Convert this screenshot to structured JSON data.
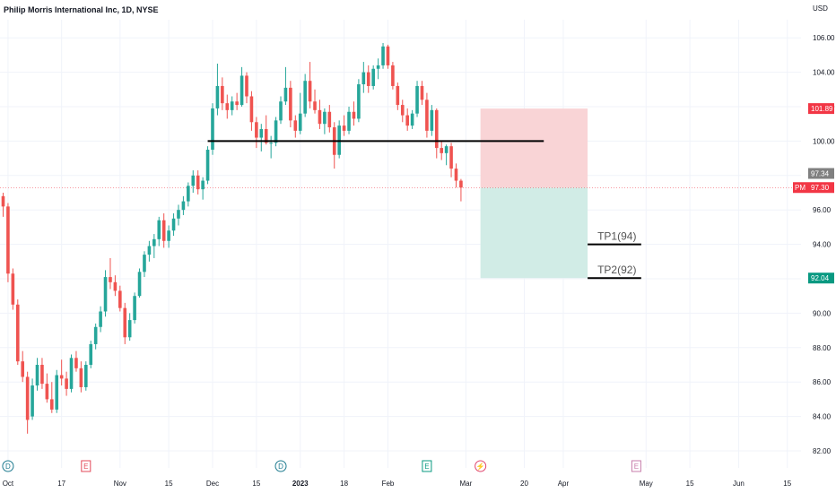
{
  "chart_data": {
    "type": "candlestick",
    "title": "Philip Morris International Inc, 1D, NYSE",
    "currency": "USD",
    "y_ticks": [
      82,
      84,
      86,
      88,
      90,
      92,
      94,
      96,
      98,
      100,
      102,
      104,
      106
    ],
    "y_tick_labels": [
      "82.00",
      "84.00",
      "86.00",
      "88.00",
      "90.00",
      "92.00",
      "94.00",
      "96.00",
      "98.00",
      "100.00",
      "102.00",
      "104.00",
      "106.00"
    ],
    "ylim": [
      81.0,
      107.5
    ],
    "x_ticks": [
      {
        "label": "Oct",
        "bar": 1
      },
      {
        "label": "17",
        "bar": 12
      },
      {
        "label": "Nov",
        "bar": 24
      },
      {
        "label": "15",
        "bar": 34
      },
      {
        "label": "Dec",
        "bar": 43
      },
      {
        "label": "15",
        "bar": 52
      },
      {
        "label": "2023",
        "bar": 61
      },
      {
        "label": "18",
        "bar": 70
      },
      {
        "label": "Feb",
        "bar": 79
      },
      {
        "label": "Mar",
        "bar": 95
      },
      {
        "label": "20",
        "bar": 107
      },
      {
        "label": "Apr",
        "bar": 115
      },
      {
        "label": "May",
        "bar": 132
      },
      {
        "label": "15",
        "bar": 141
      },
      {
        "label": "Jun",
        "bar": 151
      },
      {
        "label": "15",
        "bar": 161
      }
    ],
    "candles": [
      [
        96.8,
        97.0,
        95.6,
        96.2
      ],
      [
        96.2,
        96.4,
        91.8,
        92.3
      ],
      [
        92.3,
        92.6,
        90.2,
        90.5
      ],
      [
        90.5,
        90.8,
        87.0,
        87.2
      ],
      [
        87.2,
        87.8,
        86.0,
        86.3
      ],
      [
        86.3,
        86.6,
        83.0,
        83.8
      ],
      [
        84.0,
        86.2,
        83.8,
        85.8
      ],
      [
        85.8,
        87.4,
        85.5,
        87.0
      ],
      [
        87.0,
        87.4,
        85.6,
        85.9
      ],
      [
        85.9,
        86.5,
        84.8,
        85.0
      ],
      [
        85.0,
        86.0,
        84.2,
        84.4
      ],
      [
        84.4,
        86.7,
        84.2,
        86.4
      ],
      [
        86.4,
        87.3,
        85.8,
        86.2
      ],
      [
        86.2,
        86.6,
        85.2,
        85.6
      ],
      [
        85.6,
        87.6,
        85.4,
        87.4
      ],
      [
        87.4,
        87.8,
        86.6,
        86.8
      ],
      [
        86.8,
        87.2,
        85.4,
        85.7
      ],
      [
        85.7,
        87.2,
        85.5,
        87.0
      ],
      [
        87.0,
        88.4,
        86.8,
        88.2
      ],
      [
        88.2,
        89.4,
        87.9,
        89.2
      ],
      [
        89.2,
        90.4,
        88.9,
        90.1
      ],
      [
        90.1,
        92.5,
        89.8,
        92.1
      ],
      [
        92.1,
        93.2,
        91.4,
        91.8
      ],
      [
        91.8,
        92.2,
        91.0,
        91.3
      ],
      [
        91.3,
        91.6,
        90.1,
        90.3
      ],
      [
        90.3,
        90.6,
        88.2,
        88.6
      ],
      [
        88.6,
        90.0,
        88.4,
        89.6
      ],
      [
        89.6,
        91.2,
        89.4,
        91.0
      ],
      [
        91.0,
        92.6,
        90.9,
        92.4
      ],
      [
        92.4,
        93.6,
        92.1,
        93.4
      ],
      [
        93.4,
        94.2,
        93.0,
        93.9
      ],
      [
        93.9,
        94.6,
        93.2,
        94.3
      ],
      [
        94.3,
        95.6,
        93.9,
        95.4
      ],
      [
        95.4,
        95.8,
        93.8,
        94.2
      ],
      [
        94.2,
        95.1,
        93.8,
        94.8
      ],
      [
        94.8,
        95.8,
        94.5,
        95.5
      ],
      [
        95.5,
        96.3,
        95.1,
        96.0
      ],
      [
        96.0,
        96.8,
        95.7,
        96.5
      ],
      [
        96.5,
        97.6,
        96.2,
        97.4
      ],
      [
        97.4,
        98.3,
        97.0,
        98.0
      ],
      [
        98.0,
        98.3,
        96.9,
        97.2
      ],
      [
        97.2,
        97.9,
        96.6,
        97.7
      ],
      [
        97.7,
        99.7,
        97.5,
        99.5
      ],
      [
        99.5,
        102.2,
        99.2,
        101.9
      ],
      [
        101.9,
        104.5,
        101.5,
        103.2
      ],
      [
        103.2,
        103.7,
        101.8,
        102.2
      ],
      [
        102.2,
        102.7,
        101.3,
        101.8
      ],
      [
        101.8,
        102.6,
        101.5,
        102.3
      ],
      [
        102.3,
        102.8,
        101.8,
        102.1
      ],
      [
        102.1,
        104.3,
        102.0,
        103.8
      ],
      [
        103.8,
        104.0,
        102.2,
        102.6
      ],
      [
        102.6,
        102.9,
        100.6,
        101.1
      ],
      [
        101.1,
        101.4,
        99.6,
        100.2
      ],
      [
        100.2,
        101.0,
        99.4,
        100.7
      ],
      [
        100.7,
        101.5,
        99.8,
        99.9
      ],
      [
        99.9,
        100.3,
        99.0,
        99.9
      ],
      [
        99.9,
        101.4,
        99.7,
        101.2
      ],
      [
        101.2,
        102.6,
        101.0,
        102.3
      ],
      [
        102.3,
        104.3,
        102.1,
        103.1
      ],
      [
        103.1,
        103.5,
        100.8,
        101.2
      ],
      [
        101.2,
        101.5,
        100.2,
        100.6
      ],
      [
        100.6,
        102.8,
        100.4,
        101.6
      ],
      [
        101.6,
        103.9,
        101.4,
        103.5
      ],
      [
        103.5,
        104.6,
        101.9,
        102.3
      ],
      [
        102.3,
        103.0,
        101.6,
        101.8
      ],
      [
        101.8,
        102.4,
        100.7,
        101.0
      ],
      [
        101.0,
        101.9,
        100.4,
        101.7
      ],
      [
        101.7,
        102.1,
        100.5,
        100.8
      ],
      [
        100.8,
        101.1,
        98.4,
        99.2
      ],
      [
        99.2,
        101.2,
        99.0,
        100.9
      ],
      [
        100.9,
        101.5,
        100.3,
        100.6
      ],
      [
        100.6,
        102.0,
        100.4,
        101.7
      ],
      [
        101.7,
        102.3,
        100.9,
        101.3
      ],
      [
        101.3,
        103.6,
        101.1,
        103.3
      ],
      [
        103.3,
        104.6,
        102.8,
        104.0
      ],
      [
        104.0,
        104.4,
        102.8,
        103.2
      ],
      [
        103.2,
        104.4,
        103.0,
        104.2
      ],
      [
        104.2,
        104.8,
        103.6,
        104.4
      ],
      [
        104.4,
        105.7,
        104.2,
        105.5
      ],
      [
        105.5,
        105.6,
        104.2,
        104.4
      ],
      [
        104.4,
        104.6,
        103.0,
        103.2
      ],
      [
        103.2,
        103.4,
        101.8,
        102.1
      ],
      [
        102.1,
        102.4,
        101.1,
        101.5
      ],
      [
        101.5,
        101.9,
        100.6,
        100.9
      ],
      [
        100.9,
        101.8,
        100.7,
        101.6
      ],
      [
        101.6,
        103.5,
        101.4,
        103.2
      ],
      [
        103.2,
        103.5,
        102.1,
        102.4
      ],
      [
        102.4,
        102.8,
        100.2,
        100.6
      ],
      [
        100.6,
        102.1,
        100.3,
        101.8
      ],
      [
        101.8,
        101.9,
        99.0,
        99.6
      ],
      [
        99.6,
        100.0,
        98.9,
        99.3
      ],
      [
        99.3,
        99.8,
        98.6,
        99.7
      ],
      [
        99.7,
        99.9,
        97.9,
        98.4
      ],
      [
        98.4,
        98.7,
        97.3,
        97.7
      ],
      [
        97.7,
        97.8,
        96.5,
        97.3
      ]
    ],
    "colors": {
      "up": "#26a69a",
      "down": "#ef5350",
      "stop_zone": "#f9d4d6",
      "target_zone": "#d1ece6",
      "lines": "#000000",
      "price_tag": "#f23645",
      "prev_close_tag": "#808080",
      "target_tag": "#089981"
    },
    "resistance_line": {
      "value": 100.0,
      "from_bar": 42,
      "to_bar": 111
    },
    "position": {
      "entry": 97.3,
      "stop": 101.89,
      "target": 92.04,
      "from_bar": 98,
      "to_bar": 120,
      "stop_label": "101.89",
      "target_label": "92.04"
    },
    "targets": [
      {
        "label": "TP1(94)",
        "value": 94.0,
        "from_bar": 120,
        "to_bar": 131
      },
      {
        "label": "TP2(92)",
        "value": 92.04,
        "from_bar": 120,
        "to_bar": 131
      }
    ],
    "price_tags": {
      "prev_close": "97.34",
      "prev_close_value": 97.34,
      "current_prefix": "PM",
      "current": "97.30",
      "current_value": 97.3
    },
    "events": [
      {
        "letter": "D",
        "bar": 1,
        "shape": "circle",
        "color": "#1e7b8f"
      },
      {
        "letter": "E",
        "bar": 17,
        "shape": "square",
        "color": "#e34a5a"
      },
      {
        "letter": "D",
        "bar": 57,
        "shape": "circle",
        "color": "#1e7b8f"
      },
      {
        "letter": "E",
        "bar": 87,
        "shape": "square",
        "color": "#089981"
      },
      {
        "letter": "⚡",
        "bar": 98,
        "shape": "circle",
        "color": "#e0456e"
      },
      {
        "letter": "E",
        "bar": 130,
        "shape": "square",
        "color": "#c77dab"
      }
    ]
  }
}
